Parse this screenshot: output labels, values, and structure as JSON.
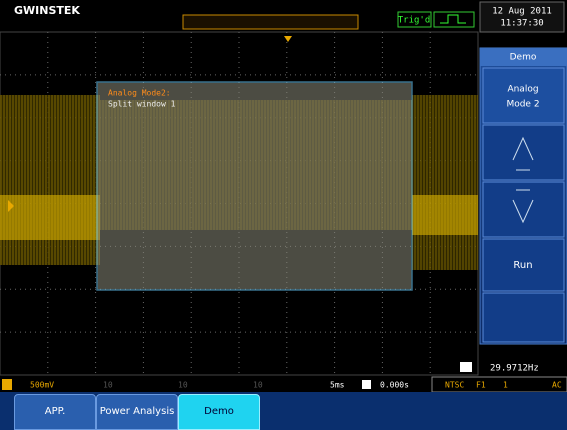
{
  "header": {
    "logo": "GWINSTEK",
    "trigger_status": "Trig'd",
    "date": "12 Aug 2011",
    "time": "11:37:30"
  },
  "side_menu": {
    "title": "Demo",
    "option": "Analog",
    "option_value": "Mode 2",
    "run": "Run"
  },
  "overlay": {
    "title": "Analog Mode2:",
    "subtitle": "Split window 1"
  },
  "frequency": "29.9712Hz",
  "status_bar": {
    "ch1": "500mV",
    "ch2": "10",
    "ch3": "10",
    "ch4": "10",
    "timebase": "5ms",
    "h_position": "0.000s",
    "trigger": "NTSC",
    "trigger_field": "F1",
    "trigger_line": "1",
    "coupling": "AC"
  },
  "bottom_menu": [
    "APP.",
    "Power Analysis",
    "Demo"
  ]
}
